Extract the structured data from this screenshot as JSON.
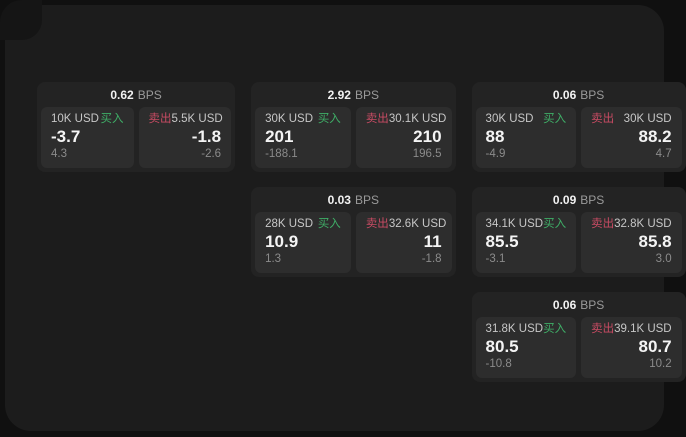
{
  "colors": {
    "outer_bg": "#101010",
    "window_bg": "#1c1c1c",
    "card_bg": "#232323",
    "side_panel_bg": "#2d2d2d",
    "buy_green": "#3fae67",
    "sell_red": "#c84b63"
  },
  "labels": {
    "bps": "BPS",
    "buy": "买入",
    "sell": "卖出"
  },
  "cards": [
    {
      "bps": "0.62",
      "col": 1,
      "row": 1,
      "buy": {
        "notional": "10K USD",
        "price": "-3.7",
        "delta": "4.3"
      },
      "sell": {
        "notional": "5.5K USD",
        "price": "-1.8",
        "delta": "-2.6"
      }
    },
    {
      "bps": "2.92",
      "col": 2,
      "row": 1,
      "buy": {
        "notional": "30K USD",
        "price": "201",
        "delta": "-188.1"
      },
      "sell": {
        "notional": "30.1K USD",
        "price": "210",
        "delta": "196.5"
      }
    },
    {
      "bps": "0.06",
      "col": 3,
      "row": 1,
      "buy": {
        "notional": "30K USD",
        "price": "88",
        "delta": "-4.9"
      },
      "sell": {
        "notional": "30K USD",
        "price": "88.2",
        "delta": "4.7"
      }
    },
    {
      "bps": "0.03",
      "col": 2,
      "row": 2,
      "buy": {
        "notional": "28K USD",
        "price": "10.9",
        "delta": "1.3"
      },
      "sell": {
        "notional": "32.6K USD",
        "price": "11",
        "delta": "-1.8"
      }
    },
    {
      "bps": "0.09",
      "col": 3,
      "row": 2,
      "buy": {
        "notional": "34.1K USD",
        "price": "85.5",
        "delta": "-3.1"
      },
      "sell": {
        "notional": "32.8K USD",
        "price": "85.8",
        "delta": "3.0"
      }
    },
    {
      "bps": "0.06",
      "col": 3,
      "row": 3,
      "buy": {
        "notional": "31.8K USD",
        "price": "80.5",
        "delta": "-10.8"
      },
      "sell": {
        "notional": "39.1K USD",
        "price": "80.7",
        "delta": "10.2"
      }
    }
  ]
}
